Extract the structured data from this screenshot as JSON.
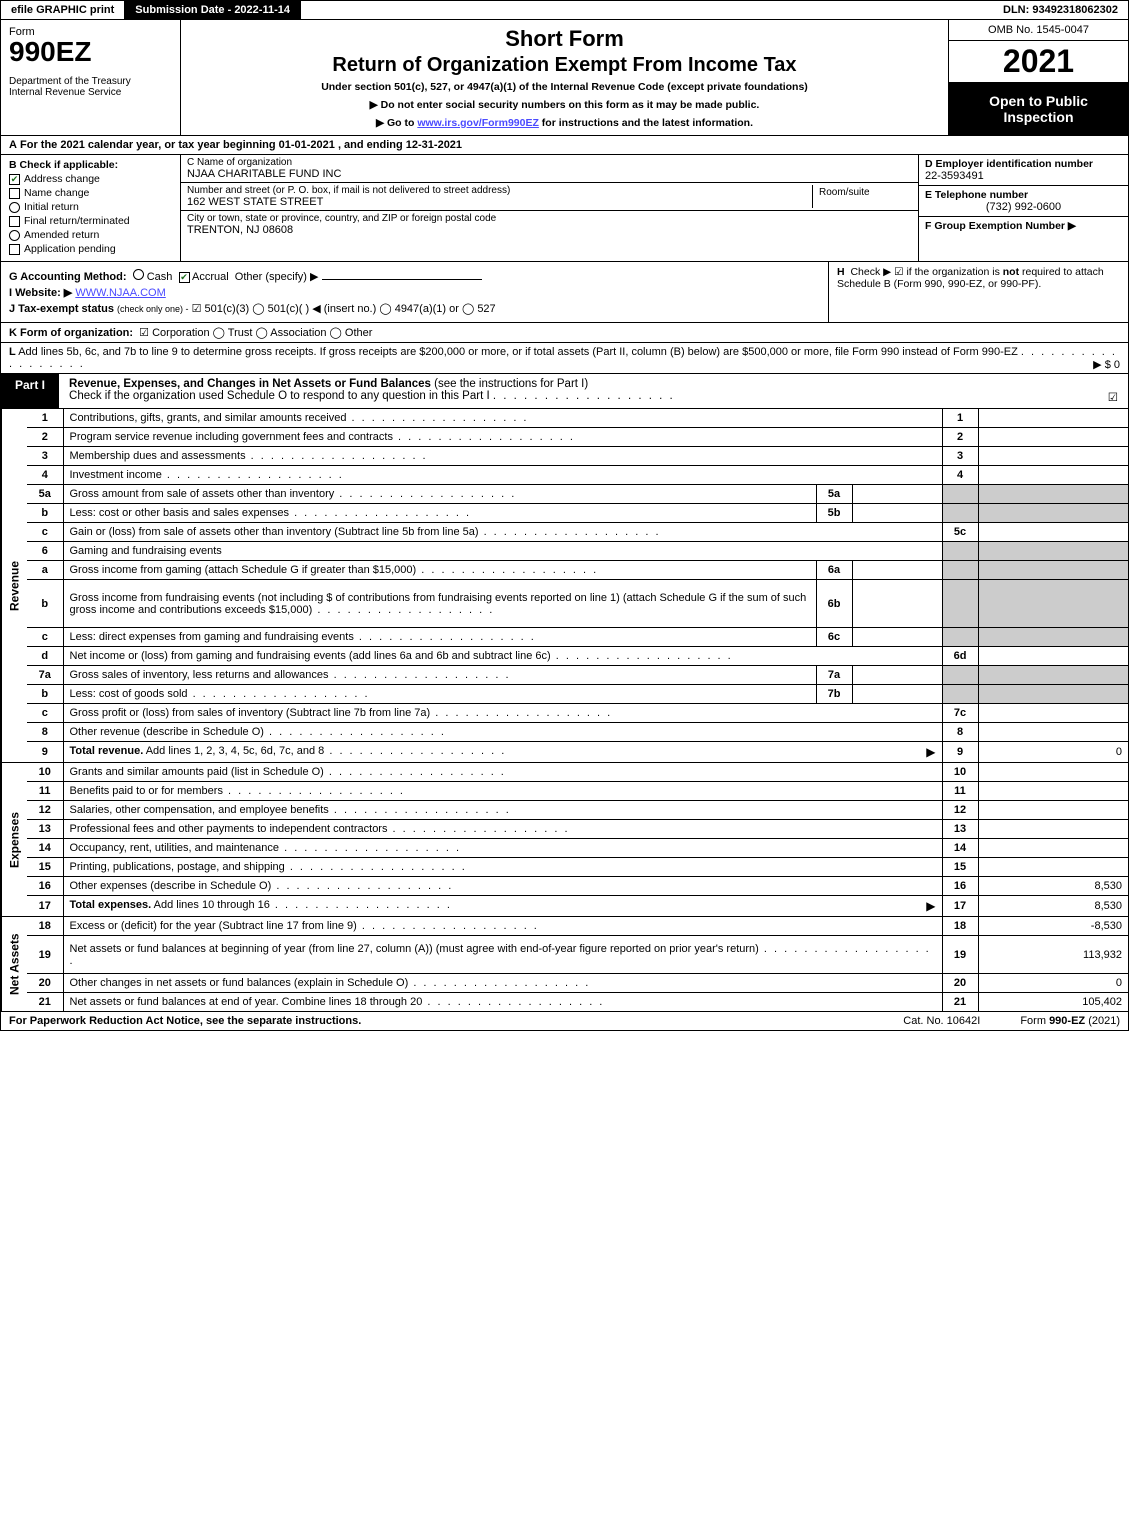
{
  "colors": {
    "black": "#000000",
    "white": "#ffffff",
    "shade": "#cccccc",
    "link": "#4b4bff",
    "check_green": "#1a6b1a"
  },
  "topbar": {
    "efile": "efile GRAPHIC print",
    "submission": "Submission Date - 2022-11-14",
    "dln": "DLN: 93492318062302"
  },
  "header": {
    "form_label": "Form",
    "form_number": "990EZ",
    "dept": "Department of the Treasury\nInternal Revenue Service",
    "short_form": "Short Form",
    "main_title": "Return of Organization Exempt From Income Tax",
    "subtitle": "Under section 501(c), 527, or 4947(a)(1) of the Internal Revenue Code (except private foundations)",
    "instr1": "▶ Do not enter social security numbers on this form as it may be made public.",
    "instr2_pre": "▶ Go to ",
    "instr2_link": "www.irs.gov/Form990EZ",
    "instr2_post": " for instructions and the latest information.",
    "omb": "OMB No. 1545-0047",
    "year": "2021",
    "open_badge": "Open to Public Inspection"
  },
  "row_a": {
    "label": "A",
    "text": "For the 2021 calendar year, or tax year beginning 01-01-2021 , and ending 12-31-2021"
  },
  "col_b": {
    "label": "B",
    "lead": "Check if applicable:",
    "items": [
      {
        "label": "Address change",
        "checked": true,
        "shape": "box"
      },
      {
        "label": "Name change",
        "checked": false,
        "shape": "box"
      },
      {
        "label": "Initial return",
        "checked": false,
        "shape": "circle"
      },
      {
        "label": "Final return/terminated",
        "checked": false,
        "shape": "box"
      },
      {
        "label": "Amended return",
        "checked": false,
        "shape": "circle"
      },
      {
        "label": "Application pending",
        "checked": false,
        "shape": "box"
      }
    ]
  },
  "col_c": {
    "name_label": "C Name of organization",
    "name": "NJAA CHARITABLE FUND INC",
    "addr_label": "Number and street (or P. O. box, if mail is not delivered to street address)",
    "addr": "162 WEST STATE STREET",
    "room_label": "Room/suite",
    "room": "",
    "city_label": "City or town, state or province, country, and ZIP or foreign postal code",
    "city": "TRENTON, NJ  08608"
  },
  "col_def": {
    "d_label": "D Employer identification number",
    "d_val": "22-3593491",
    "e_label": "E Telephone number",
    "e_val": "(732) 992-0600",
    "f_label": "F Group Exemption Number  ▶",
    "f_val": ""
  },
  "ghi": {
    "g_label": "G Accounting Method:",
    "g_cash": "Cash",
    "g_accrual": "Accrual",
    "g_other": "Other (specify) ▶",
    "i_label": "I Website: ▶",
    "i_val": "WWW.NJAA.COM",
    "j_label": "J Tax-exempt status",
    "j_note": "(check only one) -",
    "j_opts": "☑ 501(c)(3)  ◯ 501(c)(  ) ◀ (insert no.)  ◯ 4947(a)(1) or  ◯ 527",
    "h_label": "H",
    "h_text_pre": "Check ▶ ☑ if the organization is ",
    "h_not": "not",
    "h_text_post": " required to attach Schedule B (Form 990, 990-EZ, or 990-PF)."
  },
  "row_k": {
    "label": "K Form of organization:",
    "opts": "☑ Corporation  ◯ Trust  ◯ Association  ◯ Other"
  },
  "row_l": {
    "label": "L",
    "text": "Add lines 5b, 6c, and 7b to line 9 to determine gross receipts. If gross receipts are $200,000 or more, or if total assets (Part II, column (B) below) are $500,000 or more, file Form 990 instead of Form 990-EZ",
    "amount_label": "▶ $",
    "amount": "0"
  },
  "part1": {
    "label": "Part I",
    "title": "Revenue, Expenses, and Changes in Net Assets or Fund Balances",
    "title_note": "(see the instructions for Part I)",
    "check_line": "Check if the organization used Schedule O to respond to any question in this Part I",
    "check_mark": "☑"
  },
  "sections": [
    {
      "vlabel": "Revenue",
      "rows": [
        {
          "num": "1",
          "desc": "Contributions, gifts, grants, and similar amounts received",
          "rnum": "1",
          "rval": ""
        },
        {
          "num": "2",
          "desc": "Program service revenue including government fees and contracts",
          "rnum": "2",
          "rval": ""
        },
        {
          "num": "3",
          "desc": "Membership dues and assessments",
          "rnum": "3",
          "rval": ""
        },
        {
          "num": "4",
          "desc": "Investment income",
          "rnum": "4",
          "rval": ""
        },
        {
          "num": "5a",
          "desc": "Gross amount from sale of assets other than inventory",
          "subnum": "5a",
          "subval": "",
          "shade_r": true
        },
        {
          "num": "b",
          "desc": "Less: cost or other basis and sales expenses",
          "subnum": "5b",
          "subval": "",
          "shade_r": true
        },
        {
          "num": "c",
          "desc": "Gain or (loss) from sale of assets other than inventory (Subtract line 5b from line 5a)",
          "rnum": "5c",
          "rval": ""
        },
        {
          "num": "6",
          "desc": "Gaming and fundraising events",
          "shade_r": true,
          "noboxes": true
        },
        {
          "num": "a",
          "desc": "Gross income from gaming (attach Schedule G if greater than $15,000)",
          "subnum": "6a",
          "subval": "",
          "shade_r": true
        },
        {
          "num": "b",
          "desc": "Gross income from fundraising events (not including $                      of contributions from fundraising events reported on line 1) (attach Schedule G if the sum of such gross income and contributions exceeds $15,000)",
          "subnum": "6b",
          "subval": "",
          "shade_r": true,
          "tall": true
        },
        {
          "num": "c",
          "desc": "Less: direct expenses from gaming and fundraising events",
          "subnum": "6c",
          "subval": "",
          "shade_r": true
        },
        {
          "num": "d",
          "desc": "Net income or (loss) from gaming and fundraising events (add lines 6a and 6b and subtract line 6c)",
          "rnum": "6d",
          "rval": ""
        },
        {
          "num": "7a",
          "desc": "Gross sales of inventory, less returns and allowances",
          "subnum": "7a",
          "subval": "",
          "shade_r": true
        },
        {
          "num": "b",
          "desc": "Less: cost of goods sold",
          "subnum": "7b",
          "subval": "",
          "shade_r": true
        },
        {
          "num": "c",
          "desc": "Gross profit or (loss) from sales of inventory (Subtract line 7b from line 7a)",
          "rnum": "7c",
          "rval": ""
        },
        {
          "num": "8",
          "desc": "Other revenue (describe in Schedule O)",
          "rnum": "8",
          "rval": ""
        },
        {
          "num": "9",
          "desc": "Total revenue. Add lines 1, 2, 3, 4, 5c, 6d, 7c, and 8",
          "rnum": "9",
          "rval": "0",
          "bold": true,
          "arrow": true
        }
      ]
    },
    {
      "vlabel": "Expenses",
      "rows": [
        {
          "num": "10",
          "desc": "Grants and similar amounts paid (list in Schedule O)",
          "rnum": "10",
          "rval": ""
        },
        {
          "num": "11",
          "desc": "Benefits paid to or for members",
          "rnum": "11",
          "rval": ""
        },
        {
          "num": "12",
          "desc": "Salaries, other compensation, and employee benefits",
          "rnum": "12",
          "rval": ""
        },
        {
          "num": "13",
          "desc": "Professional fees and other payments to independent contractors",
          "rnum": "13",
          "rval": ""
        },
        {
          "num": "14",
          "desc": "Occupancy, rent, utilities, and maintenance",
          "rnum": "14",
          "rval": ""
        },
        {
          "num": "15",
          "desc": "Printing, publications, postage, and shipping",
          "rnum": "15",
          "rval": ""
        },
        {
          "num": "16",
          "desc": "Other expenses (describe in Schedule O)",
          "rnum": "16",
          "rval": "8,530"
        },
        {
          "num": "17",
          "desc": "Total expenses. Add lines 10 through 16",
          "rnum": "17",
          "rval": "8,530",
          "bold": true,
          "arrow": true
        }
      ]
    },
    {
      "vlabel": "Net Assets",
      "rows": [
        {
          "num": "18",
          "desc": "Excess or (deficit) for the year (Subtract line 17 from line 9)",
          "rnum": "18",
          "rval": "-8,530"
        },
        {
          "num": "19",
          "desc": "Net assets or fund balances at beginning of year (from line 27, column (A)) (must agree with end-of-year figure reported on prior year's return)",
          "rnum": "19",
          "rval": "113,932",
          "tall": true
        },
        {
          "num": "20",
          "desc": "Other changes in net assets or fund balances (explain in Schedule O)",
          "rnum": "20",
          "rval": "0"
        },
        {
          "num": "21",
          "desc": "Net assets or fund balances at end of year. Combine lines 18 through 20",
          "rnum": "21",
          "rval": "105,402",
          "arrow": false
        }
      ]
    }
  ],
  "footer": {
    "left": "For Paperwork Reduction Act Notice, see the separate instructions.",
    "mid": "Cat. No. 10642I",
    "right_pre": "Form ",
    "right_bold": "990-EZ",
    "right_post": " (2021)"
  }
}
